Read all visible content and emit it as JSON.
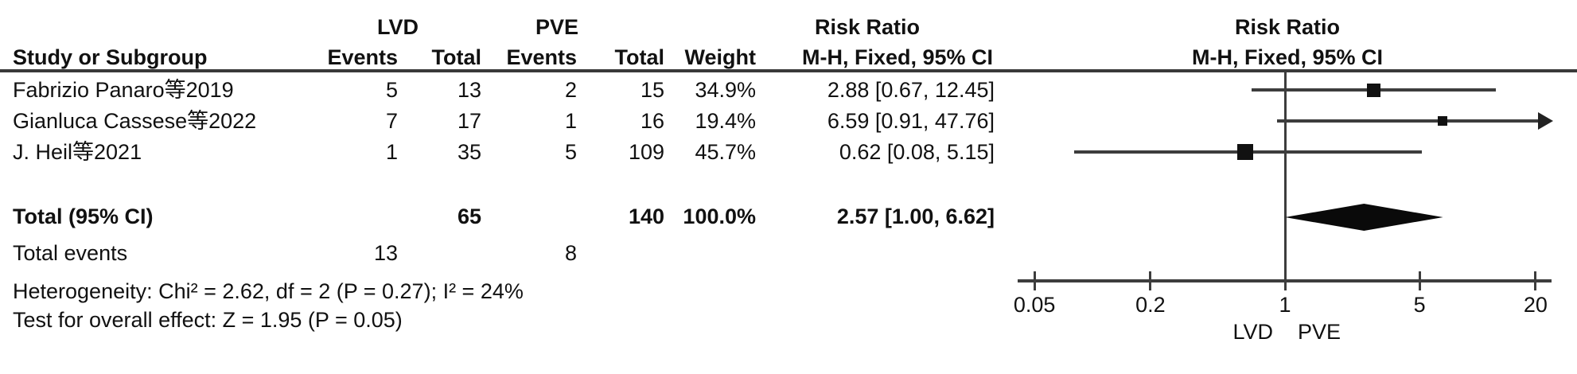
{
  "colors": {
    "text": "#111111",
    "line": "#3d3d3d",
    "marker": "#111111",
    "separator": "#3a3a3a",
    "background": "#ffffff"
  },
  "table": {
    "group1_label": "LVD",
    "group2_label": "PVE",
    "risk_ratio_title": "Risk Ratio",
    "method_label": "M-H, Fixed, 95% CI",
    "plot_title": "Risk Ratio",
    "plot_method_label": "M-H, Fixed, 95% CI",
    "col_study": "Study or Subgroup",
    "col_events": "Events",
    "col_total": "Total",
    "col_weight": "Weight",
    "rows": [
      {
        "study": "Fabrizio Panaro等2019",
        "lvd_events": "5",
        "lvd_total": "13",
        "pve_events": "2",
        "pve_total": "15",
        "weight": "34.9%",
        "rr_ci": "2.88 [0.67, 12.45]"
      },
      {
        "study": "Gianluca Cassese等2022",
        "lvd_events": "7",
        "lvd_total": "17",
        "pve_events": "1",
        "pve_total": "16",
        "weight": "19.4%",
        "rr_ci": "6.59 [0.91, 47.76]"
      },
      {
        "study": "J. Heil等2021",
        "lvd_events": "1",
        "lvd_total": "35",
        "pve_events": "5",
        "pve_total": "109",
        "weight": "45.7%",
        "rr_ci": "0.62 [0.08, 5.15]"
      }
    ],
    "total": {
      "label": "Total (95% CI)",
      "lvd_total": "65",
      "pve_total": "140",
      "weight": "100.0%",
      "rr_ci": "2.57 [1.00, 6.62]"
    },
    "total_events": {
      "label": "Total events",
      "lvd": "13",
      "pve": "8"
    },
    "heterogeneity": "Heterogeneity: Chi² = 2.62, df = 2 (P = 0.27); I² = 24%",
    "overall_effect": "Test for overall effect: Z = 1.95 (P = 0.05)"
  },
  "chart_data": {
    "type": "forest",
    "scale": "log",
    "effect_measure": "Risk Ratio",
    "method": "M-H, Fixed, 95% CI",
    "axis_ticks": [
      0.05,
      0.2,
      1,
      5,
      20
    ],
    "axis_range": [
      0.04,
      25
    ],
    "null_value": 1,
    "xlabel_left": "LVD",
    "xlabel_right": "PVE",
    "studies": [
      {
        "name": "Fabrizio Panaro等2019",
        "rr": 2.88,
        "ci_low": 0.67,
        "ci_high": 12.45,
        "weight_pct": 34.9
      },
      {
        "name": "Gianluca Cassese等2022",
        "rr": 6.59,
        "ci_low": 0.91,
        "ci_high": 47.76,
        "weight_pct": 19.4
      },
      {
        "name": "J. Heil等2021",
        "rr": 0.62,
        "ci_low": 0.08,
        "ci_high": 5.15,
        "weight_pct": 45.7
      }
    ],
    "total": {
      "label": "Total (95% CI)",
      "rr": 2.57,
      "ci_low": 1.0,
      "ci_high": 6.62,
      "weight_pct": 100.0
    }
  }
}
